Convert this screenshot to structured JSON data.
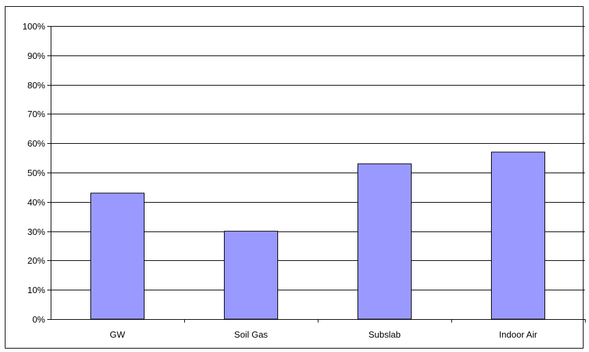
{
  "chart_data": {
    "type": "bar",
    "title": "",
    "xlabel": "",
    "ylabel": "",
    "categories": [
      "GW",
      "Soil Gas",
      "Subslab",
      "Indoor Air"
    ],
    "values": [
      43,
      30,
      53,
      57
    ],
    "ylim": [
      0,
      100
    ],
    "y_ticks": [
      "0%",
      "10%",
      "20%",
      "30%",
      "40%",
      "50%",
      "60%",
      "70%",
      "80%",
      "90%",
      "100%"
    ],
    "grid": true,
    "legend": "none",
    "colors": {
      "bar_fill": "#9999ff",
      "bar_stroke": "#000000",
      "gridline": "#000000",
      "background": "#ffffff"
    }
  }
}
